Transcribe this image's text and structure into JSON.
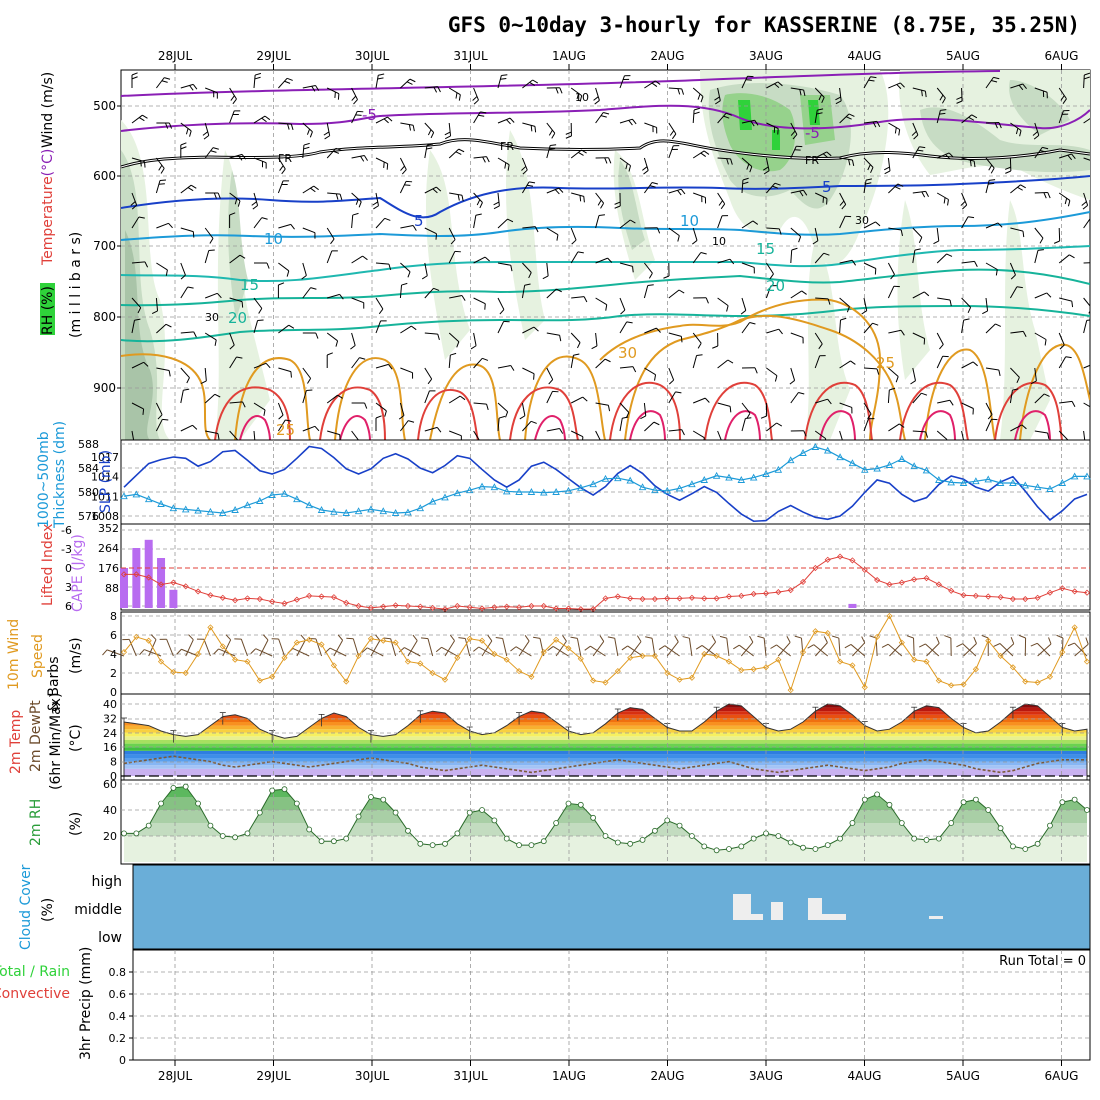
{
  "title": "GFS 0~10day 3-hourly for KASSERINE (8.75E, 35.25N)",
  "colors": {
    "purple": "#8a1fb5",
    "blue": "#1840c8",
    "cyan": "#1c9ad8",
    "teal": "#16b39a",
    "green": "#2a9d3a",
    "orange": "#e09a20",
    "red": "#e0403a",
    "magenta": "#e0206a",
    "cloud": "#6aaed8",
    "cape": "#b86cf0",
    "grid": "#9a9a9a"
  },
  "dates": [
    "28JUL",
    "29JUL",
    "30JUL",
    "31JUL",
    "1AUG",
    "2AUG",
    "3AUG",
    "4AUG",
    "5AUG",
    "6AUG"
  ],
  "panels": {
    "upper": {
      "ylabel_rh": "RH (%)",
      "ylabel_temp": "Temperature",
      "ylabel_temp_unit": "(°C)",
      "ylabel_wind": "Wind (m/s)",
      "ylabel_press": "(m i l l i b a r s)",
      "levels": [
        "500",
        "600",
        "700",
        "800",
        "900"
      ],
      "contours": [
        {
          "label": "-5",
          "color": "purple"
        },
        {
          "label": "-5",
          "color": "purple"
        },
        {
          "label": "FR",
          "color": "black"
        },
        {
          "label": "FR",
          "color": "black"
        },
        {
          "label": "FR",
          "color": "black"
        },
        {
          "label": "5",
          "color": "blue"
        },
        {
          "label": "5",
          "color": "blue"
        },
        {
          "label": "10",
          "color": "cyan"
        },
        {
          "label": "10",
          "color": "cyan"
        },
        {
          "label": "15",
          "color": "teal"
        },
        {
          "label": "15",
          "color": "teal"
        },
        {
          "label": "20",
          "color": "teal"
        },
        {
          "label": "20",
          "color": "teal"
        },
        {
          "label": "30",
          "color": "orange"
        },
        {
          "label": "25",
          "color": "orange"
        },
        {
          "label": "25",
          "color": "orange"
        }
      ],
      "rh_labels": [
        "10",
        "30",
        "30",
        "10"
      ]
    },
    "thick": {
      "ylabel_thick": "1000~500mb",
      "ylabel_thick2": "Thickness (dm)",
      "ylabel_slp": "SLP (mb)",
      "left_ticks": [
        "588",
        "584",
        "580",
        "576"
      ],
      "right_ticks": [
        "1017",
        "1014",
        "1011",
        "1008"
      ]
    },
    "li": {
      "ylabel_li": "Lifted Index",
      "ylabel_cape": "CAPE (J/kg)",
      "left_ticks": [
        "-6",
        "-3",
        "0",
        "3",
        "6"
      ],
      "right_ticks": [
        "352",
        "264",
        "176",
        "88"
      ]
    },
    "wind": {
      "ylabel1": "10m Wind",
      "ylabel2": "Speed",
      "ylabel3": "& Barbs",
      "ylabel_unit": "(m/s)",
      "ticks": [
        "8",
        "6",
        "4",
        "2",
        "0"
      ]
    },
    "temp2m": {
      "ylabel1": "2m Temp",
      "ylabel2": "2m DewPt",
      "ylabel3": "(6hr Min/Max)",
      "ylabel_unit": "(°C)",
      "ticks": [
        "40",
        "32",
        "24",
        "16",
        "8",
        "0"
      ]
    },
    "rh2m": {
      "ylabel": "2m RH",
      "ylabel_unit": "(%)",
      "ticks": [
        "60",
        "40",
        "20"
      ]
    },
    "cloud": {
      "ylabel": "Cloud Cover",
      "ylabel_unit": "(%)",
      "levels": [
        "high",
        "middle",
        "low"
      ]
    },
    "precip": {
      "ylabel_total": "Total / Rain",
      "ylabel_conv": "Convective",
      "ylabel": "3hr Precip (mm)",
      "ticks": [
        "0.8",
        "0.6",
        "0.4",
        "0.2",
        "0"
      ],
      "run_total": "Run Total = 0"
    }
  },
  "chart_data": {
    "type": "meteogram",
    "x_unit": "days from 28JUL 00Z, 3-hourly",
    "x_range": [
      -0.55,
      9.1
    ],
    "slp": [
      1012.4,
      1014.2,
      1016.0,
      1016.6,
      1017.0,
      1016.8,
      1015.6,
      1016.3,
      1017.8,
      1018.0,
      1016.5,
      1014.9,
      1014.4,
      1015.1,
      1016.8,
      1018.6,
      1018.3,
      1016.9,
      1015.2,
      1014.4,
      1015.2,
      1016.8,
      1017.5,
      1016.7,
      1015.3,
      1014.6,
      1015.7,
      1017.2,
      1016.8,
      1015.1,
      1013.5,
      1012.4,
      1013.5,
      1015.6,
      1016.2,
      1015.1,
      1013.7,
      1012.3,
      1011.2,
      1012.5,
      1014.5,
      1015.7,
      1014.5,
      1012.6,
      1011.3,
      1010.4,
      1011.4,
      1012.5,
      1011.6,
      1009.9,
      1008.3,
      1007.2,
      1007.3,
      1008.7,
      1009.6,
      1008.6,
      1007.8,
      1007.5,
      1008.0,
      1009.5,
      1011.6,
      1013.5,
      1013.0,
      1011.3,
      1010.2,
      1010.8,
      1012.8,
      1014.1,
      1013.6,
      1012.4,
      1011.8,
      1013.2,
      1014.0,
      1011.8,
      1009.4,
      1007.4,
      1008.8,
      1010.6,
      1011.3
    ],
    "thickness": [
      579.3,
      579.6,
      578.8,
      578.0,
      577.3,
      577.1,
      576.9,
      576.7,
      576.5,
      577.0,
      577.8,
      578.5,
      579.5,
      579.7,
      578.8,
      577.8,
      577.0,
      576.7,
      576.5,
      576.8,
      577.1,
      576.8,
      576.5,
      576.6,
      577.3,
      578.4,
      579.1,
      579.8,
      580.3,
      580.9,
      580.8,
      580.1,
      580.0,
      580.0,
      579.9,
      580.0,
      580.2,
      580.7,
      581.3,
      582.2,
      582.3,
      581.9,
      580.8,
      580.3,
      580.2,
      580.6,
      581.3,
      582.0,
      582.7,
      582.4,
      582.0,
      582.4,
      583.0,
      583.7,
      585.3,
      586.5,
      587.5,
      586.9,
      585.8,
      584.8,
      583.7,
      583.9,
      584.5,
      585.5,
      584.3,
      583.6,
      582.0,
      581.6,
      581.5,
      581.8,
      582.1,
      581.5,
      581.5,
      581.1,
      580.8,
      580.5,
      581.5,
      582.6,
      582.6
    ],
    "lifted_index": [
      1.0,
      1.0,
      1.5,
      2.6,
      2.3,
      2.9,
      3.7,
      4.3,
      4.7,
      5.1,
      4.8,
      4.9,
      5.3,
      5.6,
      5.0,
      4.4,
      4.5,
      4.6,
      5.5,
      6.0,
      6.3,
      6.1,
      5.9,
      6.0,
      6.1,
      6.3,
      6.5,
      6.0,
      6.2,
      6.4,
      6.2,
      6.1,
      6.2,
      6.0,
      6.0,
      6.4,
      6.4,
      6.5,
      6.5,
      4.8,
      4.5,
      4.8,
      4.9,
      4.9,
      4.8,
      4.8,
      4.7,
      4.8,
      4.8,
      4.5,
      4.4,
      4.1,
      4.0,
      3.8,
      3.5,
      2.2,
      0.0,
      -1.3,
      -1.8,
      -1.2,
      0.3,
      1.9,
      2.6,
      2.3,
      1.8,
      1.6,
      2.6,
      3.6,
      4.3,
      4.4,
      4.5,
      4.6,
      4.9,
      4.9,
      4.7,
      3.9,
      3.2,
      3.7,
      3.9
    ],
    "cape": [
      176,
      264,
      300,
      220,
      80,
      0,
      0,
      0,
      0,
      0,
      0,
      0,
      0,
      0,
      0,
      0,
      0,
      0,
      0,
      0,
      0,
      0,
      0,
      0,
      0,
      0,
      0,
      0,
      0,
      0,
      0,
      0,
      0,
      0,
      0,
      0,
      0,
      0,
      0,
      0,
      0,
      0,
      0,
      0,
      0,
      0,
      0,
      0,
      0,
      0,
      0,
      0,
      0,
      0,
      0,
      0,
      0,
      0,
      0,
      18,
      0,
      0,
      0,
      0,
      0,
      0,
      0,
      0,
      0,
      0,
      0,
      0,
      0,
      0,
      0,
      0,
      0,
      0,
      0
    ],
    "wind_speed": [
      4.2,
      5.8,
      5.4,
      3.2,
      2.1,
      2.0,
      4.0,
      6.8,
      4.8,
      3.4,
      3.2,
      1.2,
      1.6,
      3.6,
      5.2,
      5.5,
      5.0,
      2.8,
      1.1,
      3.8,
      5.6,
      5.4,
      5.2,
      3.2,
      3.0,
      2.0,
      1.3,
      3.6,
      5.6,
      5.4,
      4.0,
      3.4,
      2.2,
      1.6,
      4.2,
      5.5,
      4.6,
      3.5,
      1.2,
      1.0,
      2.2,
      3.6,
      3.8,
      3.8,
      2.0,
      1.3,
      1.5,
      4.0,
      3.8,
      3.2,
      2.3,
      2.4,
      2.6,
      3.4,
      0.2,
      4.2,
      6.4,
      6.2,
      3.2,
      2.8,
      0.5,
      5.8,
      8.0,
      5.2,
      3.4,
      3.2,
      1.2,
      0.7,
      0.8,
      2.4,
      5.4,
      3.8,
      2.6,
      1.1,
      1.0,
      1.6,
      4.2,
      6.8,
      3.2
    ],
    "temp_2m": [
      30,
      29,
      28,
      25,
      23,
      22,
      23,
      28,
      33,
      34,
      32,
      26,
      23,
      21,
      22,
      27,
      32,
      35,
      33,
      27,
      23,
      22,
      23,
      28,
      34,
      36,
      35,
      29,
      25,
      23,
      24,
      28,
      33,
      36,
      35,
      30,
      25,
      23,
      24,
      29,
      35,
      38,
      37,
      32,
      27,
      25,
      25,
      30,
      36,
      40,
      39,
      33,
      27,
      25,
      26,
      30,
      36,
      40,
      39,
      34,
      28,
      25,
      26,
      30,
      36,
      39,
      38,
      32,
      27,
      24,
      25,
      30,
      36,
      40,
      39,
      33,
      27,
      25,
      26
    ],
    "dewpt_2m": [
      7,
      8,
      9,
      10,
      11,
      10,
      9,
      8,
      6,
      5,
      6,
      7,
      8,
      7,
      6,
      5,
      6,
      7,
      8,
      9,
      10,
      9,
      8,
      7,
      5,
      4,
      3,
      4,
      5,
      6,
      5,
      4,
      3,
      2,
      3,
      4,
      5,
      6,
      7,
      8,
      9,
      8,
      7,
      6,
      5,
      4,
      5,
      6,
      7,
      8,
      6,
      4,
      3,
      2,
      3,
      4,
      5,
      6,
      5,
      4,
      3,
      4,
      5,
      7,
      8,
      9,
      8,
      7,
      6,
      4,
      3,
      2,
      3,
      5,
      7,
      8,
      9,
      9,
      9
    ],
    "rh_2m": [
      22,
      22,
      28,
      45,
      57,
      58,
      45,
      28,
      20,
      19,
      22,
      38,
      55,
      56,
      45,
      25,
      16,
      16,
      18,
      35,
      50,
      48,
      38,
      24,
      14,
      13,
      14,
      22,
      38,
      40,
      32,
      18,
      13,
      13,
      16,
      30,
      45,
      44,
      34,
      20,
      15,
      14,
      17,
      24,
      32,
      28,
      20,
      12,
      9,
      10,
      12,
      18,
      22,
      20,
      15,
      11,
      10,
      13,
      18,
      30,
      48,
      52,
      44,
      30,
      18,
      17,
      18,
      30,
      46,
      48,
      40,
      26,
      12,
      10,
      14,
      28,
      46,
      48,
      40
    ],
    "cloud_middle": [
      0,
      0,
      0,
      0,
      0,
      0,
      0,
      0,
      0,
      0,
      0,
      0,
      0,
      0,
      0,
      0,
      0,
      0,
      0,
      0,
      0,
      0,
      0,
      0,
      0,
      0,
      0,
      0,
      0,
      0,
      0,
      0,
      0,
      0,
      0,
      0,
      0,
      0,
      0,
      0,
      0,
      0,
      0,
      0,
      0,
      0,
      0,
      0,
      0,
      0,
      0,
      0,
      0,
      0,
      0,
      0,
      0,
      0,
      0,
      0,
      0,
      0,
      0,
      0,
      0,
      0,
      0,
      0,
      0,
      0,
      0,
      0,
      0,
      0,
      0,
      0,
      0,
      0,
      0
    ],
    "precip_total": 0,
    "precip_ylim": [
      0,
      1.0
    ]
  }
}
